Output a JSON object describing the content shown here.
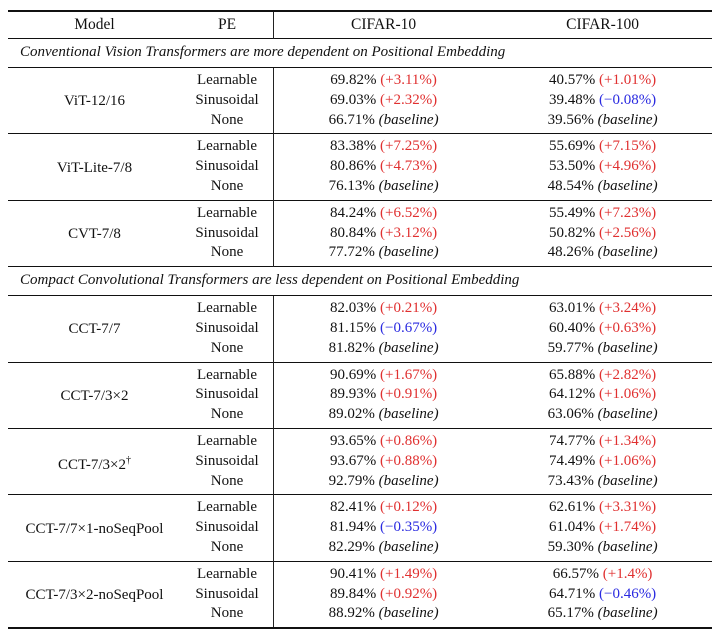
{
  "header": {
    "model": "Model",
    "pe": "PE",
    "cifar10": "CIFAR-10",
    "cifar100": "CIFAR-100"
  },
  "sections": [
    {
      "title": "Conventional Vision Transformers are more dependent on Positional Embedding",
      "groups": [
        {
          "model": "ViT-12/16",
          "rows": [
            {
              "pe": "Learnable",
              "c10": "69.82%",
              "c10_delta": "(+3.11%)",
              "c10_color": "red",
              "c100": "40.57%",
              "c100_delta": "(+1.01%)",
              "c100_color": "red"
            },
            {
              "pe": "Sinusoidal",
              "c10": "69.03%",
              "c10_delta": "(+2.32%)",
              "c10_color": "red",
              "c100": "39.48%",
              "c100_delta": "(−0.08%)",
              "c100_color": "blue"
            },
            {
              "pe": "None",
              "c10": "66.71%",
              "c10_delta": "(baseline)",
              "c10_color": "base",
              "c100": "39.56%",
              "c100_delta": "(baseline)",
              "c100_color": "base"
            }
          ]
        },
        {
          "model": "ViT-Lite-7/8",
          "rows": [
            {
              "pe": "Learnable",
              "c10": "83.38%",
              "c10_delta": "(+7.25%)",
              "c10_color": "red",
              "c100": "55.69%",
              "c100_delta": "(+7.15%)",
              "c100_color": "red"
            },
            {
              "pe": "Sinusoidal",
              "c10": "80.86%",
              "c10_delta": "(+4.73%)",
              "c10_color": "red",
              "c100": "53.50%",
              "c100_delta": "(+4.96%)",
              "c100_color": "red"
            },
            {
              "pe": "None",
              "c10": "76.13%",
              "c10_delta": "(baseline)",
              "c10_color": "base",
              "c100": "48.54%",
              "c100_delta": "(baseline)",
              "c100_color": "base"
            }
          ]
        },
        {
          "model": "CVT-7/8",
          "rows": [
            {
              "pe": "Learnable",
              "c10": "84.24%",
              "c10_delta": "(+6.52%)",
              "c10_color": "red",
              "c100": "55.49%",
              "c100_delta": "(+7.23%)",
              "c100_color": "red"
            },
            {
              "pe": "Sinusoidal",
              "c10": "80.84%",
              "c10_delta": "(+3.12%)",
              "c10_color": "red",
              "c100": "50.82%",
              "c100_delta": "(+2.56%)",
              "c100_color": "red"
            },
            {
              "pe": "None",
              "c10": "77.72%",
              "c10_delta": "(baseline)",
              "c10_color": "base",
              "c100": "48.26%",
              "c100_delta": "(baseline)",
              "c100_color": "base"
            }
          ]
        }
      ]
    },
    {
      "title": "Compact Convolutional Transformers are less dependent on Positional Embedding",
      "groups": [
        {
          "model": "CCT-7/7",
          "rows": [
            {
              "pe": "Learnable",
              "c10": "82.03%",
              "c10_delta": "(+0.21%)",
              "c10_color": "red",
              "c100": "63.01%",
              "c100_delta": "(+3.24%)",
              "c100_color": "red"
            },
            {
              "pe": "Sinusoidal",
              "c10": "81.15%",
              "c10_delta": "(−0.67%)",
              "c10_color": "blue",
              "c100": "60.40%",
              "c100_delta": "(+0.63%)",
              "c100_color": "red"
            },
            {
              "pe": "None",
              "c10": "81.82%",
              "c10_delta": "(baseline)",
              "c10_color": "base",
              "c100": "59.77%",
              "c100_delta": "(baseline)",
              "c100_color": "base"
            }
          ]
        },
        {
          "model": "CCT-7/3×2",
          "rows": [
            {
              "pe": "Learnable",
              "c10": "90.69%",
              "c10_delta": "(+1.67%)",
              "c10_color": "red",
              "c100": "65.88%",
              "c100_delta": "(+2.82%)",
              "c100_color": "red"
            },
            {
              "pe": "Sinusoidal",
              "c10": "89.93%",
              "c10_delta": "(+0.91%)",
              "c10_color": "red",
              "c100": "64.12%",
              "c100_delta": "(+1.06%)",
              "c100_color": "red"
            },
            {
              "pe": "None",
              "c10": "89.02%",
              "c10_delta": "(baseline)",
              "c10_color": "base",
              "c100": "63.06%",
              "c100_delta": "(baseline)",
              "c100_color": "base"
            }
          ]
        },
        {
          "model": "CCT-7/3×2",
          "model_sup": "†",
          "rows": [
            {
              "pe": "Learnable",
              "c10": "93.65%",
              "c10_delta": "(+0.86%)",
              "c10_color": "red",
              "c100": "74.77%",
              "c100_delta": "(+1.34%)",
              "c100_color": "red"
            },
            {
              "pe": "Sinusoidal",
              "c10": "93.67%",
              "c10_delta": "(+0.88%)",
              "c10_color": "red",
              "c100": "74.49%",
              "c100_delta": "(+1.06%)",
              "c100_color": "red"
            },
            {
              "pe": "None",
              "c10": "92.79%",
              "c10_delta": "(baseline)",
              "c10_color": "base",
              "c100": "73.43%",
              "c100_delta": "(baseline)",
              "c100_color": "base"
            }
          ]
        },
        {
          "model": "CCT-7/7×1-noSeqPool",
          "rows": [
            {
              "pe": "Learnable",
              "c10": "82.41%",
              "c10_delta": "(+0.12%)",
              "c10_color": "red",
              "c100": "62.61%",
              "c100_delta": "(+3.31%)",
              "c100_color": "red"
            },
            {
              "pe": "Sinusoidal",
              "c10": "81.94%",
              "c10_delta": "(−0.35%)",
              "c10_color": "blue",
              "c100": "61.04%",
              "c100_delta": "(+1.74%)",
              "c100_color": "red"
            },
            {
              "pe": "None",
              "c10": "82.29%",
              "c10_delta": "(baseline)",
              "c10_color": "base",
              "c100": "59.30%",
              "c100_delta": "(baseline)",
              "c100_color": "base"
            }
          ]
        },
        {
          "model": "CCT-7/3×2-noSeqPool",
          "rows": [
            {
              "pe": "Learnable",
              "c10": "90.41%",
              "c10_delta": "(+1.49%)",
              "c10_color": "red",
              "c100": "66.57%",
              "c100_delta": "(+1.4%)",
              "c100_color": "red"
            },
            {
              "pe": "Sinusoidal",
              "c10": "89.84%",
              "c10_delta": "(+0.92%)",
              "c10_color": "red",
              "c100": "64.71%",
              "c100_delta": "(−0.46%)",
              "c100_color": "blue"
            },
            {
              "pe": "None",
              "c10": "88.92%",
              "c10_delta": "(baseline)",
              "c10_color": "base",
              "c100": "65.17%",
              "c100_delta": "(baseline)",
              "c100_color": "base"
            }
          ]
        }
      ]
    }
  ],
  "colors": {
    "red": "#e03030",
    "blue": "#2a2ae0"
  }
}
